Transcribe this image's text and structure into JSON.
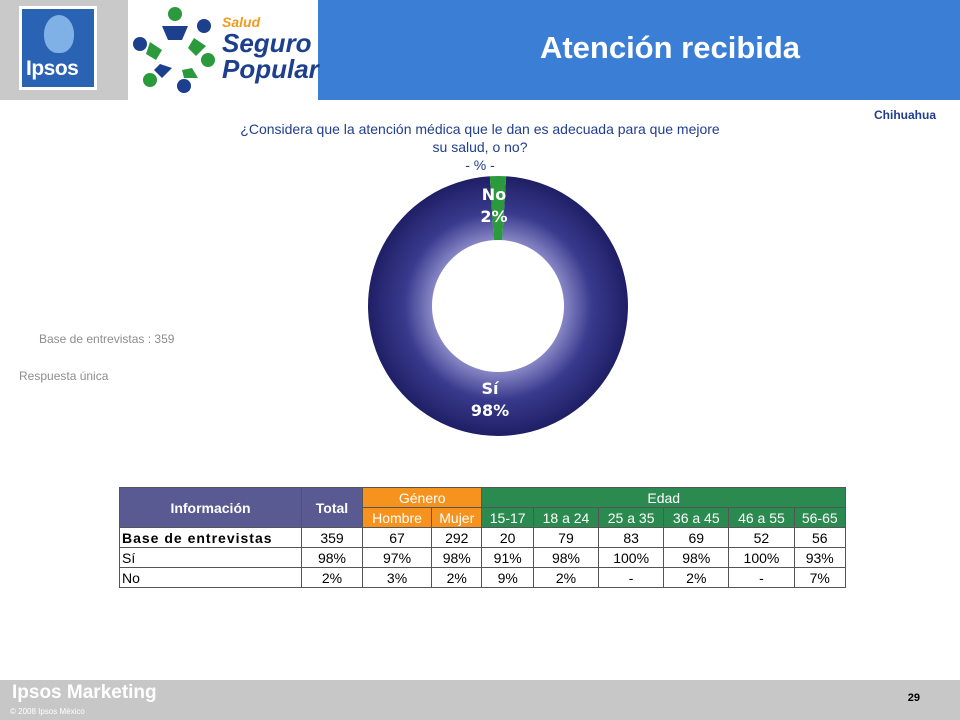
{
  "header": {
    "ipsos_logo_text": "Ipsos",
    "sp_salud": "Salud",
    "sp_seguro": "Seguro",
    "sp_popular": "Popular",
    "title": "Atención recibida",
    "region": "Chihuahua",
    "colors": {
      "band": "#3a7fd5",
      "logo_box": "#c9c9c9"
    }
  },
  "question": {
    "line1": "¿Considera que la atención médica que le dan es adecuada para que mejore",
    "line2": "su salud, o  no?",
    "line3": "- % -"
  },
  "notes": {
    "base": "Base de entrevistas : 359",
    "response": "Respuesta única"
  },
  "chart_data": {
    "type": "pie",
    "variant": "donut",
    "categories": [
      "Sí",
      "No"
    ],
    "values": [
      98,
      2
    ],
    "labels": [
      {
        "name": "Sí",
        "pct": "98%"
      },
      {
        "name": "No",
        "pct": "2%"
      }
    ],
    "colors": [
      "#2e2e7d",
      "#2a9a3c"
    ]
  },
  "table": {
    "header_information": "Información",
    "header_total": "Total",
    "header_gender": "Género",
    "header_age": "Edad",
    "subheaders": [
      "Hombre",
      "Mujer",
      "15-17",
      "18 a 24",
      "25 a 35",
      "36 a 45",
      "46 a 55",
      "56-65"
    ],
    "rows": [
      {
        "label": "Base de entrevistas",
        "values": [
          "359",
          "67",
          "292",
          "20",
          "79",
          "83",
          "69",
          "52",
          "56"
        ]
      },
      {
        "label": "Sí",
        "values": [
          "98%",
          "97%",
          "98%",
          "91%",
          "98%",
          "100%",
          "98%",
          "100%",
          "93%"
        ]
      },
      {
        "label": "No",
        "values": [
          "2%",
          "3%",
          "2%",
          "9%",
          "2%",
          "-",
          "2%",
          "-",
          "7%"
        ]
      }
    ],
    "colors": {
      "info": "#5a5a93",
      "gender": "#f5931e",
      "age": "#2b8a4f"
    }
  },
  "footer": {
    "brand": "Ipsos Marketing",
    "copyright": "© 2008 Ipsos México",
    "page": "29"
  }
}
